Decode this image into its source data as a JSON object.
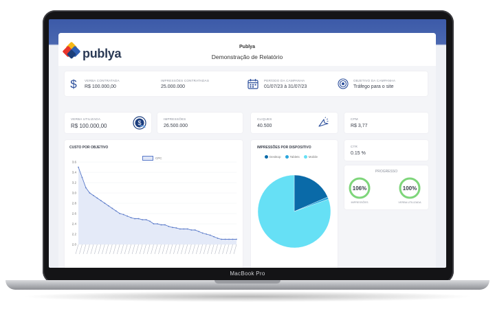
{
  "device": {
    "brand_label": "MacBook Pro"
  },
  "header": {
    "logo_text": "publya",
    "company": "Publya",
    "report_title": "Demonstração de Relatório"
  },
  "summary": {
    "verba_contratada": {
      "label": "VERBA CONTRATADA",
      "value": "R$ 100.000,00",
      "icon": "dollar-icon"
    },
    "impressoes_contratadas": {
      "label": "IMPRESSÕES CONTRATADAS",
      "value": "25.000.000"
    },
    "periodo": {
      "label": "PERÍODO DA CAMPANHA",
      "value": "01/07/23 à 31/07/23",
      "icon": "calendar-icon"
    },
    "objetivo": {
      "label": "OBJETIVO DA CAMPANHA",
      "value": "Tráfego para o site",
      "icon": "target-icon"
    }
  },
  "kpis": {
    "verba_utilizada": {
      "label": "VERBA UTILIZADA",
      "value": "R$ 100.000,00",
      "icon": "money-icon"
    },
    "impressoes": {
      "label": "IMPRESSÕES",
      "value": "26.500.000"
    },
    "cliques": {
      "label": "CLIQUES",
      "value": "40.500",
      "icon": "cursor-click-icon"
    },
    "cpm": {
      "label": "CPM",
      "value": "R$ 3,77"
    },
    "ctr": {
      "label": "CTR",
      "value": "0.15 %"
    }
  },
  "progress": {
    "title": "PROGRESSO",
    "items": [
      {
        "value": "106%",
        "label": "IMPRESSÕES",
        "fraction": 1.0
      },
      {
        "value": "100%",
        "label": "VERBA UTILIZADA",
        "fraction": 1.0
      }
    ],
    "ring_color": "#7ed67a"
  },
  "chart_data": [
    {
      "type": "area",
      "title": "CUSTO POR OBJETIVO",
      "series": [
        {
          "name": "CPC",
          "values": [
            3.5,
            3.3,
            3.1,
            3.0,
            2.95,
            2.9,
            2.85,
            2.8,
            2.75,
            2.7,
            2.65,
            2.6,
            2.58,
            2.55,
            2.52,
            2.5,
            2.5,
            2.48,
            2.48,
            2.45,
            2.4,
            2.4,
            2.38,
            2.38,
            2.35,
            2.33,
            2.32,
            2.3,
            2.3,
            2.3,
            2.28,
            2.28,
            2.25,
            2.22,
            2.2,
            2.18,
            2.15,
            2.12,
            2.1,
            2.1,
            2.1,
            2.1,
            2.1
          ]
        }
      ],
      "ylim": [
        2.0,
        3.6
      ],
      "yticks": [
        "3.6",
        "3.4",
        "3.2",
        "3.0",
        "2.8",
        "2.6",
        "2.4",
        "2.2",
        "2.0"
      ],
      "color": "#5a7ac9",
      "fill": "#dfe6f7"
    },
    {
      "type": "pie",
      "title": "IMPRESSÕES POR DISPOSITIVO",
      "labels": [
        "Desktop",
        "Tablets",
        "Mobile"
      ],
      "values": [
        18.5,
        1.0,
        80.5
      ],
      "colors": [
        "#0a6aa8",
        "#2aa6dd",
        "#66e0f5"
      ]
    }
  ]
}
